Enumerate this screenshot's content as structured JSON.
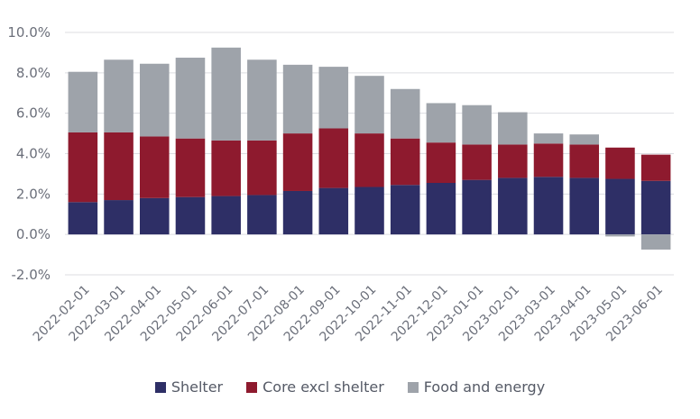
{
  "chart_data": {
    "type": "bar",
    "stacked": true,
    "categories": [
      "2022-02-01",
      "2022-03-01",
      "2022-04-01",
      "2022-05-01",
      "2022-06-01",
      "2022-07-01",
      "2022-08-01",
      "2022-09-01",
      "2022-10-01",
      "2022-11-01",
      "2022-12-01",
      "2023-01-01",
      "2023-02-01",
      "2023-03-01",
      "2023-04-01",
      "2023-05-01",
      "2023-06-01"
    ],
    "series": [
      {
        "name": "Shelter",
        "color": "#2e2f66",
        "values": [
          1.6,
          1.7,
          1.8,
          1.85,
          1.9,
          1.95,
          2.15,
          2.3,
          2.35,
          2.45,
          2.55,
          2.7,
          2.8,
          2.85,
          2.8,
          2.75,
          2.65
        ]
      },
      {
        "name": "Core excl shelter",
        "color": "#8e1a2e",
        "values": [
          3.45,
          3.35,
          3.05,
          2.9,
          2.75,
          2.7,
          2.85,
          2.95,
          2.65,
          2.3,
          2.0,
          1.75,
          1.65,
          1.65,
          1.65,
          1.55,
          1.3
        ]
      },
      {
        "name": "Food and energy",
        "color": "#9ea3aa",
        "values": [
          3.0,
          3.6,
          3.6,
          4.0,
          4.6,
          4.0,
          3.4,
          3.05,
          2.85,
          2.45,
          1.95,
          1.95,
          1.6,
          0.5,
          0.5,
          -0.1,
          -0.75
        ]
      }
    ],
    "ylim": [
      -2.0,
      10.0
    ],
    "yticks": [
      -2.0,
      0.0,
      2.0,
      4.0,
      6.0,
      8.0,
      10.0
    ],
    "ytick_labels": [
      "-2.0%",
      "0.0%",
      "2.0%",
      "4.0%",
      "6.0%",
      "8.0%",
      "10.0%"
    ],
    "grid": true,
    "legend_position": "bottom",
    "title": "",
    "xlabel": "",
    "ylabel": ""
  }
}
